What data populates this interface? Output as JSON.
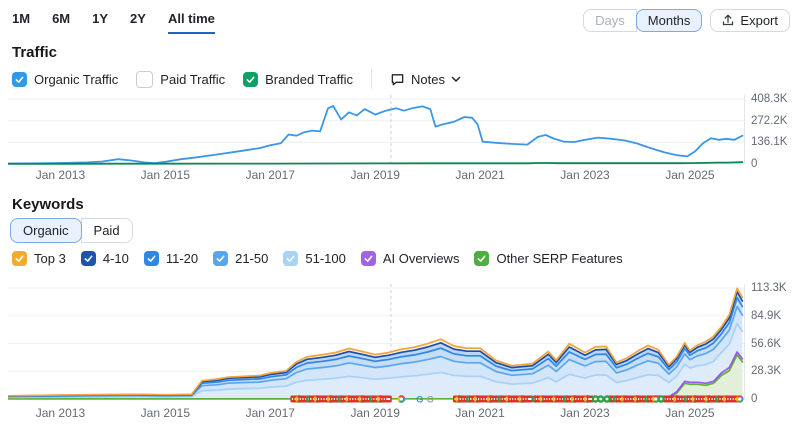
{
  "toolbar": {
    "ranges": [
      {
        "label": "1M",
        "active": false
      },
      {
        "label": "6M",
        "active": false
      },
      {
        "label": "1Y",
        "active": false
      },
      {
        "label": "2Y",
        "active": false
      },
      {
        "label": "All time",
        "active": true
      }
    ],
    "granularity": {
      "options": [
        {
          "label": "Days",
          "active": false
        },
        {
          "label": "Months",
          "active": true
        }
      ]
    },
    "export_label": "Export"
  },
  "traffic": {
    "title": "Traffic",
    "legend": [
      {
        "label": "Organic Traffic",
        "checked": true,
        "color": "#2e9ae8"
      },
      {
        "label": "Paid Traffic",
        "checked": false,
        "color": "#ffffff"
      },
      {
        "label": "Branded Traffic",
        "checked": true,
        "color": "#0da263"
      }
    ],
    "notes_label": "Notes"
  },
  "keywords": {
    "title": "Keywords",
    "tabs": [
      {
        "label": "Organic",
        "active": true
      },
      {
        "label": "Paid",
        "active": false
      }
    ],
    "legend": [
      {
        "label": "Top 3",
        "color": "#f2ab2d"
      },
      {
        "label": "4-10",
        "color": "#1d55ad"
      },
      {
        "label": "11-20",
        "color": "#2e87e5"
      },
      {
        "label": "21-50",
        "color": "#54a6ef"
      },
      {
        "label": "51-100",
        "color": "#a6d3f6"
      },
      {
        "label": "AI Overviews",
        "color": "#a064e0"
      },
      {
        "label": "Other SERP Features",
        "color": "#4caf3e"
      }
    ]
  },
  "chart_data": [
    {
      "type": "line",
      "title": "Traffic (All time, Months)",
      "x_range": [
        2012,
        2026.05
      ],
      "x_ticks": [
        {
          "t": 2013,
          "label": "Jan 2013"
        },
        {
          "t": 2015,
          "label": "Jan 2015"
        },
        {
          "t": 2017,
          "label": "Jan 2017"
        },
        {
          "t": 2019,
          "label": "Jan 2019"
        },
        {
          "t": 2021,
          "label": "Jan 2021"
        },
        {
          "t": 2023,
          "label": "Jan 2023"
        },
        {
          "t": 2025,
          "label": "Jan 2025"
        }
      ],
      "y_ticks": [
        {
          "v": 408.3,
          "label": "408.3K"
        },
        {
          "v": 272.2,
          "label": "272.2K"
        },
        {
          "v": 136.1,
          "label": "136.1K"
        },
        {
          "v": 0,
          "label": "0"
        }
      ],
      "y_unit": "K visits",
      "note_line_t": 2019.3,
      "series": [
        {
          "name": "Organic Traffic",
          "color": "#3a97e8",
          "points": [
            [
              2012,
              3
            ],
            [
              2012.5,
              4
            ],
            [
              2013,
              6
            ],
            [
              2013.5,
              10
            ],
            [
              2013.8,
              16
            ],
            [
              2014.1,
              30
            ],
            [
              2014.35,
              22
            ],
            [
              2014.6,
              10
            ],
            [
              2014.8,
              5
            ],
            [
              2015,
              14
            ],
            [
              2015.3,
              30
            ],
            [
              2015.6,
              42
            ],
            [
              2016,
              60
            ],
            [
              2016.4,
              80
            ],
            [
              2016.8,
              100
            ],
            [
              2017,
              118
            ],
            [
              2017.2,
              130
            ],
            [
              2017.35,
              185
            ],
            [
              2017.5,
              178
            ],
            [
              2017.65,
              200
            ],
            [
              2017.8,
              210
            ],
            [
              2017.95,
              205
            ],
            [
              2018.1,
              350
            ],
            [
              2018.2,
              365
            ],
            [
              2018.35,
              280
            ],
            [
              2018.5,
              325
            ],
            [
              2018.65,
              305
            ],
            [
              2018.8,
              345
            ],
            [
              2019,
              310
            ],
            [
              2019.2,
              335
            ],
            [
              2019.4,
              350
            ],
            [
              2019.55,
              335
            ],
            [
              2019.7,
              350
            ],
            [
              2019.9,
              362
            ],
            [
              2020.05,
              345
            ],
            [
              2020.15,
              235
            ],
            [
              2020.3,
              250
            ],
            [
              2020.5,
              265
            ],
            [
              2020.7,
              295
            ],
            [
              2020.85,
              290
            ],
            [
              2020.95,
              250
            ],
            [
              2021.05,
              140
            ],
            [
              2021.3,
              133
            ],
            [
              2021.6,
              126
            ],
            [
              2021.9,
              122
            ],
            [
              2022.1,
              170
            ],
            [
              2022.25,
              182
            ],
            [
              2022.4,
              160
            ],
            [
              2022.6,
              140
            ],
            [
              2022.8,
              138
            ],
            [
              2023,
              152
            ],
            [
              2023.25,
              166
            ],
            [
              2023.5,
              158
            ],
            [
              2023.75,
              148
            ],
            [
              2024,
              128
            ],
            [
              2024.25,
              100
            ],
            [
              2024.5,
              75
            ],
            [
              2024.75,
              55
            ],
            [
              2024.95,
              48
            ],
            [
              2025.1,
              80
            ],
            [
              2025.25,
              130
            ],
            [
              2025.4,
              162
            ],
            [
              2025.55,
              152
            ],
            [
              2025.7,
              158
            ],
            [
              2025.85,
              152
            ],
            [
              2026,
              178
            ]
          ]
        },
        {
          "name": "Branded Traffic",
          "color": "#0a8852",
          "points": [
            [
              2012,
              1
            ],
            [
              2013,
              1.2
            ],
            [
              2014,
              1.6
            ],
            [
              2015,
              1.8
            ],
            [
              2016,
              2.2
            ],
            [
              2017,
              2.8
            ],
            [
              2018,
              3.4
            ],
            [
              2019,
              3.8
            ],
            [
              2020,
              4.2
            ],
            [
              2021,
              4.5
            ],
            [
              2021.9,
              4.6
            ],
            [
              2022.1,
              6.5
            ],
            [
              2022.3,
              6.2
            ],
            [
              2022.5,
              5
            ],
            [
              2023,
              5
            ],
            [
              2024,
              5
            ],
            [
              2024.8,
              5
            ],
            [
              2025,
              5.5
            ],
            [
              2025.3,
              7
            ],
            [
              2025.5,
              8.5
            ],
            [
              2025.7,
              9
            ],
            [
              2026,
              11
            ]
          ]
        }
      ]
    },
    {
      "type": "stacked-area",
      "title": "Keywords — Organic positions (All time, Months)",
      "x_range": [
        2012,
        2026.05
      ],
      "x_ticks": [
        {
          "t": 2013,
          "label": "Jan 2013"
        },
        {
          "t": 2015,
          "label": "Jan 2015"
        },
        {
          "t": 2017,
          "label": "Jan 2017"
        },
        {
          "t": 2019,
          "label": "Jan 2019"
        },
        {
          "t": 2021,
          "label": "Jan 2021"
        },
        {
          "t": 2023,
          "label": "Jan 2023"
        },
        {
          "t": 2025,
          "label": "Jan 2025"
        }
      ],
      "y_ticks": [
        {
          "v": 113.3,
          "label": "113.3K"
        },
        {
          "v": 84.9,
          "label": "84.9K"
        },
        {
          "v": 56.6,
          "label": "56.6K"
        },
        {
          "v": 28.3,
          "label": "28.3K"
        },
        {
          "v": 0,
          "label": "0"
        }
      ],
      "y_unit": "K keywords",
      "note_line_t": 2019.3,
      "t": [
        2012.0,
        2013.0,
        2014.0,
        2014.5,
        2015.0,
        2015.5,
        2015.7,
        2016.0,
        2016.2,
        2016.5,
        2016.8,
        2017.0,
        2017.3,
        2017.5,
        2017.7,
        2018.0,
        2018.25,
        2018.5,
        2018.75,
        2019.0,
        2019.25,
        2019.5,
        2019.75,
        2020.0,
        2020.25,
        2020.5,
        2020.75,
        2021.0,
        2021.3,
        2021.6,
        2022.0,
        2022.3,
        2022.45,
        2022.7,
        2023.0,
        2023.2,
        2023.4,
        2023.6,
        2023.8,
        2024.0,
        2024.2,
        2024.4,
        2024.6,
        2024.75,
        2024.9,
        2025.0,
        2025.15,
        2025.3,
        2025.45,
        2025.6,
        2025.75,
        2025.9,
        2026.0
      ],
      "bands": [
        {
          "name": "Other SERP Features",
          "fill": "#e2f0da",
          "line": "#5eb234",
          "values": [
            0.1,
            0.1,
            0.1,
            0.1,
            0.1,
            0.1,
            0.1,
            0.1,
            0.1,
            0.1,
            0.1,
            0.1,
            0.1,
            0.1,
            0.1,
            0.2,
            0.2,
            0.2,
            0.2,
            0.2,
            0.2,
            0.2,
            0.2,
            0.2,
            0.2,
            0.2,
            0.2,
            0.2,
            0.2,
            0.2,
            0.2,
            0.2,
            0.2,
            0.2,
            0.3,
            1.5,
            1.0,
            0.3,
            0.3,
            0.4,
            0.5,
            2.5,
            1.5,
            6,
            16,
            15,
            15,
            14,
            16,
            24,
            29,
            45,
            38
          ]
        },
        {
          "name": "AI Overviews",
          "fill": "#ead9f7",
          "line": "#9b59e8",
          "visible_from": 2024.15,
          "values": [
            0,
            0,
            0,
            0,
            0,
            0,
            0,
            0,
            0,
            0,
            0,
            0,
            0,
            0,
            0,
            0,
            0,
            0,
            0,
            0,
            0,
            0,
            0,
            0,
            0,
            0,
            0,
            0,
            0,
            0,
            0,
            0,
            0,
            0,
            0,
            0,
            0,
            0,
            0,
            0,
            0.2,
            0.5,
            0.8,
            1.5,
            2,
            2,
            2,
            2,
            2,
            2.5,
            3,
            3,
            3
          ]
        },
        {
          "name": "51-100",
          "fill": "#ddebfa",
          "line": "#a9d1f6",
          "values": [
            1.5,
            1.8,
            2.0,
            2.2,
            2.0,
            2.2,
            8.5,
            9.0,
            10,
            10.5,
            10.8,
            12,
            13,
            17,
            19,
            20,
            21,
            23,
            21.5,
            20,
            21,
            22.5,
            23.5,
            25,
            27,
            24,
            23,
            23,
            17.5,
            15,
            16,
            21.5,
            17.5,
            25,
            21,
            23,
            23.5,
            16.5,
            18.5,
            21.5,
            24,
            21,
            14.5,
            16,
            17.5,
            14.5,
            17,
            19,
            20.5,
            21,
            24,
            29,
            28
          ]
        },
        {
          "name": "21-50",
          "fill": "#d2e5f9",
          "line": "#5ba7ef",
          "values": [
            0.8,
            1.0,
            1.2,
            1.2,
            1.1,
            1.2,
            5.0,
            5.5,
            6.0,
            6.2,
            6.4,
            7.0,
            7.6,
            10,
            11.5,
            12,
            12.6,
            13.6,
            12.8,
            12,
            12.5,
            13.4,
            14,
            15,
            16.2,
            14.3,
            13.7,
            13.7,
            10.4,
            9.0,
            9.5,
            12.8,
            10.4,
            15,
            12.5,
            13.7,
            14,
            9.8,
            11,
            12.8,
            14.3,
            12.5,
            8.6,
            9.5,
            10.4,
            8.6,
            10.1,
            11.3,
            12.2,
            12.5,
            14.3,
            17.3,
            16.6
          ]
        },
        {
          "name": "11-20",
          "fill": "#c6ddf6",
          "line": "#2e87e5",
          "values": [
            0.4,
            0.5,
            0.6,
            0.6,
            0.5,
            0.6,
            2.5,
            2.8,
            3.0,
            3.1,
            3.2,
            3.6,
            3.9,
            5.2,
            6,
            6.3,
            6.6,
            7.1,
            6.7,
            6.3,
            6.6,
            7.0,
            7.3,
            7.8,
            8.5,
            7.5,
            7.2,
            7.2,
            5.5,
            4.7,
            5.0,
            6.7,
            5.5,
            7.8,
            6.6,
            7.2,
            7.3,
            5.2,
            5.8,
            6.7,
            7.5,
            6.6,
            4.5,
            5.0,
            5.5,
            4.5,
            5.3,
            5.9,
            6.4,
            6.6,
            7.5,
            9.1,
            8.7
          ]
        },
        {
          "name": "4-10",
          "fill": "#bcd7f5",
          "line": "#1d4fa8",
          "values": [
            0.3,
            0.4,
            0.4,
            0.4,
            0.4,
            0.4,
            1.6,
            1.8,
            2.0,
            2.0,
            2.1,
            2.3,
            2.5,
            3.4,
            3.9,
            4.1,
            4.3,
            4.6,
            4.4,
            4.1,
            4.3,
            4.6,
            4.8,
            5.1,
            5.5,
            4.9,
            4.7,
            4.7,
            3.6,
            3.1,
            3.3,
            4.4,
            3.6,
            5.1,
            4.3,
            4.7,
            4.8,
            3.4,
            3.8,
            4.4,
            4.9,
            4.3,
            3.0,
            3.3,
            3.6,
            3.0,
            3.5,
            3.9,
            4.2,
            4.3,
            4.9,
            5.9,
            5.7
          ]
        },
        {
          "name": "Top 3",
          "fill": "#fdf6e3",
          "line": "#f2a33c",
          "values": [
            0.2,
            0.3,
            0.3,
            0.3,
            0.3,
            0.3,
            1.0,
            1.2,
            1.3,
            1.3,
            1.4,
            1.5,
            1.6,
            2.2,
            2.5,
            2.7,
            2.8,
            3.0,
            2.9,
            2.7,
            2.8,
            3.0,
            3.1,
            3.3,
            3.6,
            3.2,
            3.1,
            3.1,
            2.3,
            2.0,
            2.1,
            2.9,
            2.3,
            3.3,
            2.8,
            3.1,
            3.1,
            2.2,
            2.5,
            2.9,
            3.2,
            2.8,
            1.9,
            2.1,
            2.3,
            1.9,
            2.2,
            2.5,
            2.7,
            2.8,
            3.2,
            3.8,
            3.7
          ]
        }
      ],
      "note_markers": {
        "clusters": [
          {
            "from": 2017.45,
            "to": 2019.28,
            "step": 0.05
          },
          {
            "from": 2020.55,
            "to": 2021.95,
            "step": 0.05
          },
          {
            "from": 2022.05,
            "to": 2023.12,
            "step": 0.05
          },
          {
            "from": 2023.5,
            "to": 2024.35,
            "step": 0.05
          },
          {
            "from": 2024.55,
            "to": 2025.98,
            "step": 0.05
          }
        ],
        "pattern": [
          "r",
          "r",
          "m",
          "r",
          "r",
          "r",
          "g",
          "r",
          "r",
          "m",
          "r",
          "r"
        ],
        "specials": [
          [
            2019.5,
            "m"
          ],
          [
            2019.85,
            "G",
            "#4285F4"
          ],
          [
            2020.05,
            "G",
            "#9aa0a6"
          ],
          [
            2023.2,
            "g"
          ],
          [
            2023.3,
            "g"
          ],
          [
            2023.42,
            "g"
          ],
          [
            2024.45,
            "g"
          ]
        ]
      }
    }
  ]
}
